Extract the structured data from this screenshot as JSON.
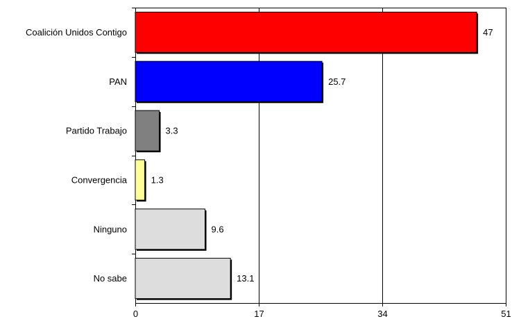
{
  "chart_data": {
    "type": "bar",
    "orientation": "horizontal",
    "title": "",
    "xlabel": "",
    "ylabel": "",
    "categories": [
      "Coalición Unidos Contigo",
      "PAN",
      "Partido Trabajo",
      "Convergencia",
      "Ninguno",
      "No sabe"
    ],
    "values": [
      47,
      25.7,
      3.3,
      1.3,
      9.6,
      13.1
    ],
    "value_labels": [
      "47",
      "25.7",
      "3.3",
      "1.3",
      "9.6",
      "13.1"
    ],
    "bar_colors": [
      "#ff0000",
      "#0000ff",
      "#808080",
      "#ffff99",
      "#dddddd",
      "#dddddd"
    ],
    "xlim": [
      0,
      51
    ],
    "xticks": [
      0,
      17,
      34,
      51
    ],
    "xtick_labels": [
      "0",
      "17",
      "34",
      "51"
    ],
    "grid": "vertical",
    "legend": "none"
  }
}
